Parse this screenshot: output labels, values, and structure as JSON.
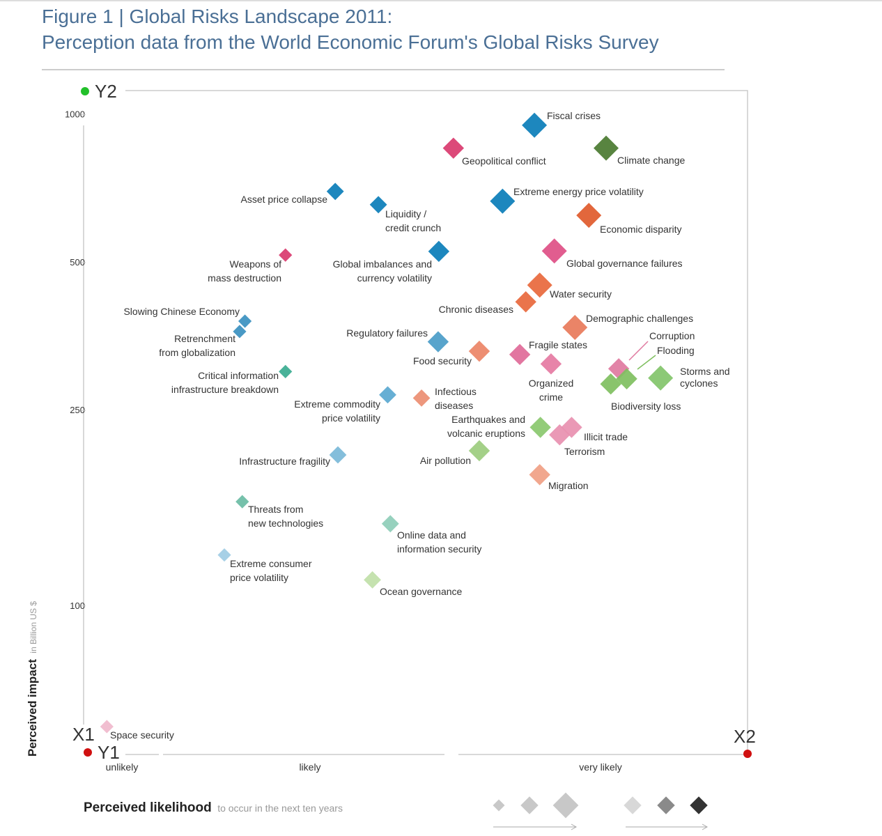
{
  "chart_data": {
    "type": "scatter",
    "title": [
      "Figure 1 | Global Risks Landscape 2011:",
      "Perception data from the World Economic Forum's Global Risks Survey"
    ],
    "y_label": {
      "bold": "Perceived impact",
      "rest": "in Billion US $"
    },
    "x_label": {
      "bold": "Perceived likelihood",
      "rest": "to occur in the next ten years"
    },
    "categories": [
      "unlikely",
      "likely",
      "very likely"
    ],
    "xlim": [
      0,
      1
    ],
    "ylim": [
      50,
      1120
    ],
    "yticks": [
      100,
      250,
      500,
      1000
    ],
    "log_y": true,
    "corner_markers": [
      {
        "label": "Y2",
        "color": "#22c02a"
      },
      {
        "label": "X1",
        "color": "#d01010"
      },
      {
        "label": "Y1",
        "color": "#d01010"
      },
      {
        "label": "X2",
        "color": "#d01010"
      }
    ],
    "points": [
      {
        "label": [
          "Fiscal crises"
        ],
        "x": 0.679,
        "y": 952,
        "size": 5,
        "color": "#0a7db8"
      },
      {
        "label": [
          "Climate change"
        ],
        "x": 0.787,
        "y": 855,
        "size": 5,
        "color": "#4a7a30"
      },
      {
        "label": [
          "Geopolitical conflict"
        ],
        "x": 0.557,
        "y": 855,
        "size": 4,
        "color": "#d93a6e"
      },
      {
        "label": [
          "Extreme energy price volatility"
        ],
        "x": 0.631,
        "y": 667,
        "size": 5,
        "color": "#0a7db8"
      },
      {
        "label": [
          "Economic disparity"
        ],
        "x": 0.761,
        "y": 624,
        "size": 5,
        "color": "#e05a2b"
      },
      {
        "label": [
          "Asset price collapse"
        ],
        "x": 0.379,
        "y": 698,
        "size": 3,
        "color": "#0a7db8"
      },
      {
        "label": [
          "Liquidity /",
          "credit crunch"
        ],
        "x": 0.444,
        "y": 656,
        "size": 3,
        "color": "#0a7db8"
      },
      {
        "label": [
          "Global imbalances and",
          "currency volatility"
        ],
        "x": 0.535,
        "y": 527,
        "size": 4,
        "color": "#0a7db8"
      },
      {
        "label": [
          "Weapons of",
          "mass destruction"
        ],
        "x": 0.304,
        "y": 518,
        "size": 2,
        "color": "#d93a6e"
      },
      {
        "label": [
          "Global governance failures"
        ],
        "x": 0.709,
        "y": 528,
        "size": 5,
        "color": "#de4f86"
      },
      {
        "label": [
          "Water security"
        ],
        "x": 0.687,
        "y": 450,
        "size": 5,
        "color": "#e8683c"
      },
      {
        "label": [
          "Chronic diseases"
        ],
        "x": 0.666,
        "y": 416,
        "size": 4,
        "color": "#e8683c"
      },
      {
        "label": [
          "Demographic challenges"
        ],
        "x": 0.74,
        "y": 369,
        "size": 5,
        "color": "#e8795a"
      },
      {
        "label": [
          "Slowing Chinese Economy"
        ],
        "x": 0.243,
        "y": 380,
        "size": 2,
        "color": "#3a90c0"
      },
      {
        "label": [
          "Retrenchment",
          "from globalization"
        ],
        "x": 0.235,
        "y": 362,
        "size": 2,
        "color": "#3a90c0"
      },
      {
        "label": [
          "Regulatory failures"
        ],
        "x": 0.534,
        "y": 345,
        "size": 4,
        "color": "#4a9cc8"
      },
      {
        "label": [
          "Food security"
        ],
        "x": 0.596,
        "y": 330,
        "size": 4,
        "color": "#ec8466"
      },
      {
        "label": [
          "Fragile states"
        ],
        "x": 0.657,
        "y": 325,
        "size": 4,
        "color": "#e06a98"
      },
      {
        "label": [
          "Organized",
          "crime"
        ],
        "x": 0.704,
        "y": 311,
        "size": 4,
        "color": "#e57aa2"
      },
      {
        "label": [
          "Corruption"
        ],
        "x": 0.806,
        "y": 304,
        "size": 4,
        "color": "#e07aa0"
      },
      {
        "label": [
          "Flooding"
        ],
        "x": 0.818,
        "y": 290,
        "size": 4,
        "color": "#7fbf5f"
      },
      {
        "label": [
          "Biodiversity loss"
        ],
        "x": 0.794,
        "y": 283,
        "size": 4,
        "color": "#7fbf5f"
      },
      {
        "label": [
          "Storms and",
          "cyclones"
        ],
        "x": 0.869,
        "y": 291,
        "size": 5,
        "color": "#82c46a"
      },
      {
        "label": [
          "Critical information",
          "infrastructure breakdown"
        ],
        "x": 0.304,
        "y": 300,
        "size": 2,
        "color": "#3aab90"
      },
      {
        "label": [
          "Extreme commodity",
          "price volatility"
        ],
        "x": 0.458,
        "y": 269,
        "size": 3,
        "color": "#5aa8d0"
      },
      {
        "label": [
          "Infectious",
          "diseases"
        ],
        "x": 0.509,
        "y": 265,
        "size": 3,
        "color": "#ec8e72"
      },
      {
        "label": [
          "Earthquakes and",
          "volcanic eruptions"
        ],
        "x": 0.688,
        "y": 231,
        "size": 4,
        "color": "#8ac86e"
      },
      {
        "label": [
          "Illicit trade"
        ],
        "x": 0.735,
        "y": 231,
        "size": 4,
        "color": "#e890b0"
      },
      {
        "label": [
          "Terrorism"
        ],
        "x": 0.717,
        "y": 223,
        "size": 4,
        "color": "#e890b0"
      },
      {
        "label": [
          "Air pollution"
        ],
        "x": 0.596,
        "y": 207,
        "size": 4,
        "color": "#9ccc7e"
      },
      {
        "label": [
          "Migration"
        ],
        "x": 0.687,
        "y": 185,
        "size": 4,
        "color": "#f0a084"
      },
      {
        "label": [
          "Infrastructure fragility"
        ],
        "x": 0.383,
        "y": 203,
        "size": 3,
        "color": "#7ab8d8"
      },
      {
        "label": [
          "Threats from",
          "new technologies"
        ],
        "x": 0.239,
        "y": 163,
        "size": 2,
        "color": "#6abca4"
      },
      {
        "label": [
          "Online data and",
          "information security"
        ],
        "x": 0.462,
        "y": 147,
        "size": 3,
        "color": "#8ecdb8"
      },
      {
        "label": [
          "Extreme consumer",
          "price volatility"
        ],
        "x": 0.212,
        "y": 127,
        "size": 2,
        "color": "#a0cce4"
      },
      {
        "label": [
          "Ocean governance"
        ],
        "x": 0.435,
        "y": 113,
        "size": 3,
        "color": "#c0e0a8"
      },
      {
        "label": [
          "Space security"
        ],
        "x": 0.035,
        "y": 56.8,
        "size": 2,
        "color": "#f0b8cc"
      }
    ]
  }
}
